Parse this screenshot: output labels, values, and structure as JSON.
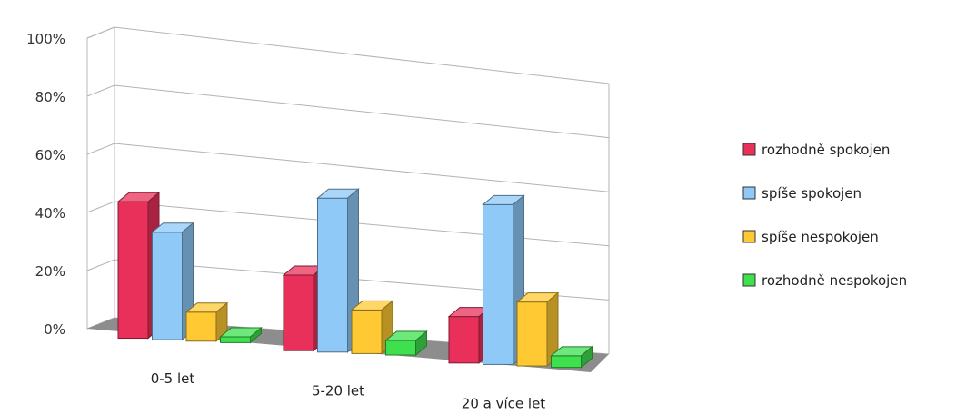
{
  "chart_data": {
    "type": "bar",
    "title": "",
    "xlabel": "",
    "ylabel": "",
    "ylim": [
      0,
      100
    ],
    "yticks": [
      "0%",
      "20%",
      "40%",
      "60%",
      "80%",
      "100%"
    ],
    "grid": true,
    "legend_position": "right",
    "three_d": true,
    "categories": [
      "0-5 let",
      "5-20 let",
      "20 a více let"
    ],
    "series": [
      {
        "name": "rozhodně spokojen",
        "color": "#e8305a",
        "values": [
          47,
          26,
          16
        ]
      },
      {
        "name": "spíše spokojen",
        "color": "#8ec9f7",
        "values": [
          37,
          53,
          55
        ]
      },
      {
        "name": "spíše nespokojen",
        "color": "#ffc933",
        "values": [
          10,
          15,
          22
        ]
      },
      {
        "name": "rozhodně nespokojen",
        "color": "#3ee04e",
        "values": [
          2,
          5,
          4
        ]
      }
    ]
  }
}
